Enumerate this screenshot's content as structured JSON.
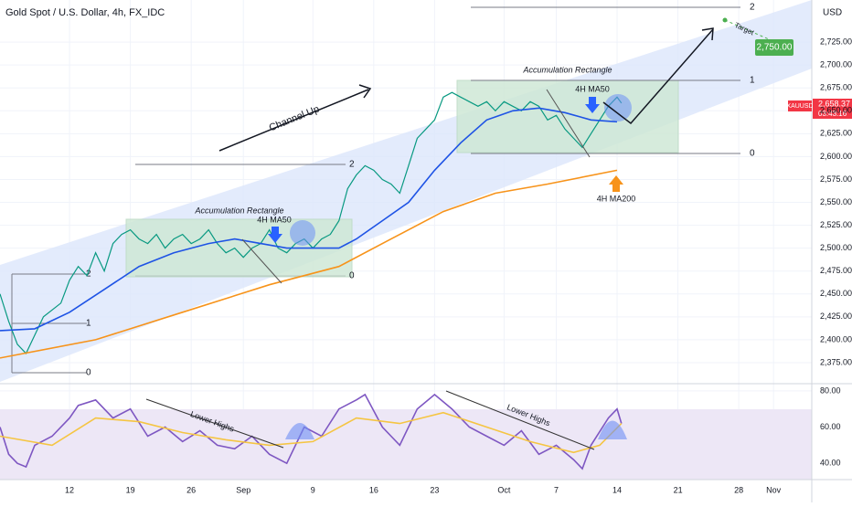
{
  "chart_data": [
    {
      "type": "line",
      "title": "Gold Spot / U.S. Dollar, 4h, FX_IDC",
      "currency": "USD",
      "xlim": [
        -1,
        92.4
      ],
      "xticks": [
        {
          "value": 7,
          "label": "12"
        },
        {
          "value": 14,
          "label": "19"
        },
        {
          "value": 21,
          "label": "26"
        },
        {
          "value": 27,
          "label": "Sep"
        },
        {
          "value": 35,
          "label": "9"
        },
        {
          "value": 42,
          "label": "16"
        },
        {
          "value": 49,
          "label": "23"
        },
        {
          "value": 57,
          "label": "Oct"
        },
        {
          "value": 63,
          "label": "7"
        },
        {
          "value": 70,
          "label": "14"
        },
        {
          "value": 77,
          "label": "21"
        },
        {
          "value": 84,
          "label": "28"
        },
        {
          "value": 88,
          "label": "Nov"
        }
      ],
      "ylim": [
        2352,
        2771
      ],
      "yticks": [
        {
          "value": 2375,
          "label": "2,375.00"
        },
        {
          "value": 2400,
          "label": "2,400.00"
        },
        {
          "value": 2425,
          "label": "2,425.00"
        },
        {
          "value": 2450,
          "label": "2,450.00"
        },
        {
          "value": 2475,
          "label": "2,475.00"
        },
        {
          "value": 2500,
          "label": "2,500.00"
        },
        {
          "value": 2525,
          "label": "2,525.00"
        },
        {
          "value": 2550,
          "label": "2,550.00"
        },
        {
          "value": 2575,
          "label": "2,575.00"
        },
        {
          "value": 2600,
          "label": "2,600.00"
        },
        {
          "value": 2625,
          "label": "2,625.00"
        },
        {
          "value": 2650,
          "label": "2,650.00"
        },
        {
          "value": 2675,
          "label": "2,675.00"
        },
        {
          "value": 2700,
          "label": "2,700.00"
        },
        {
          "value": 2725,
          "label": "2,725.00"
        }
      ],
      "grid": true,
      "series": [
        {
          "name": "XAUUSD",
          "color": "#089981",
          "x": [
            -1,
            0,
            1,
            2,
            3,
            4,
            6,
            7,
            8,
            9,
            10,
            11,
            12,
            13,
            14,
            15,
            16,
            17,
            18,
            19,
            20,
            21,
            22,
            23,
            24,
            25,
            26,
            27,
            28,
            29,
            30,
            31,
            32,
            33,
            34,
            35,
            36,
            37,
            38,
            39,
            40,
            41,
            42,
            43,
            44,
            45,
            46,
            47,
            48,
            49,
            50,
            51,
            52,
            53,
            54,
            55,
            56,
            57,
            58,
            59,
            60,
            61,
            62,
            63,
            64,
            65,
            66,
            67,
            68,
            69,
            70,
            70.5
          ],
          "values": [
            2450,
            2420,
            2395,
            2385,
            2405,
            2425,
            2440,
            2465,
            2480,
            2470,
            2495,
            2475,
            2505,
            2515,
            2520,
            2510,
            2505,
            2515,
            2500,
            2510,
            2515,
            2505,
            2510,
            2520,
            2505,
            2495,
            2500,
            2490,
            2500,
            2505,
            2520,
            2500,
            2495,
            2505,
            2510,
            2500,
            2510,
            2515,
            2530,
            2565,
            2580,
            2590,
            2585,
            2575,
            2570,
            2560,
            2590,
            2620,
            2630,
            2640,
            2665,
            2670,
            2665,
            2660,
            2655,
            2660,
            2650,
            2660,
            2655,
            2650,
            2660,
            2655,
            2640,
            2645,
            2630,
            2620,
            2610,
            2625,
            2640,
            2655,
            2665,
            2658.37
          ]
        },
        {
          "name": "4H MA50",
          "color": "#1e53e5",
          "x": [
            -1,
            3,
            7,
            11,
            15,
            19,
            23,
            26,
            29,
            32,
            35,
            38,
            40,
            43,
            46,
            49,
            52,
            55,
            58,
            61,
            64,
            67,
            70
          ],
          "values": [
            2410,
            2412,
            2430,
            2455,
            2480,
            2495,
            2505,
            2510,
            2505,
            2500,
            2500,
            2500,
            2510,
            2530,
            2550,
            2585,
            2615,
            2640,
            2650,
            2653,
            2648,
            2640,
            2638
          ]
        },
        {
          "name": "4H MA200",
          "color": "#f7931a",
          "x": [
            -1,
            10,
            20,
            30,
            38,
            44,
            50,
            56,
            62,
            70
          ],
          "values": [
            2380,
            2400,
            2430,
            2460,
            2480,
            2510,
            2540,
            2560,
            2570,
            2585
          ]
        }
      ],
      "last_price_label": "2,658.37",
      "countdown": "03:43:16",
      "target_label": "2,750.00",
      "annotations": [
        "Target",
        "Channel Up",
        "Accumulation Rectangle",
        "Accumulation Rectangle"
      ],
      "fib_labels": [
        "2",
        "1",
        "0",
        "2",
        "0",
        "2",
        "1",
        "0"
      ]
    },
    {
      "type": "line",
      "xlim": [
        -1,
        92.4
      ],
      "ylim": [
        31,
        84
      ],
      "yticks": [
        {
          "value": 80,
          "label": "80.00"
        },
        {
          "value": 60,
          "label": "60.00"
        },
        {
          "value": 40,
          "label": "40.00"
        }
      ],
      "series": [
        {
          "color": "#7e57c2",
          "x": [
            -1,
            0,
            1,
            2,
            3,
            5,
            7,
            8,
            10,
            12,
            14,
            16,
            18,
            20,
            22,
            24,
            26,
            28,
            30,
            32,
            34,
            36,
            38,
            40,
            41,
            43,
            45,
            47,
            49,
            51,
            53,
            55,
            57,
            59,
            61,
            63,
            65,
            66,
            67,
            69,
            70,
            70.5
          ],
          "values": [
            60,
            45,
            40,
            38,
            50,
            55,
            65,
            72,
            75,
            65,
            70,
            55,
            60,
            52,
            58,
            50,
            48,
            55,
            45,
            40,
            60,
            55,
            70,
            75,
            78,
            60,
            50,
            70,
            78,
            70,
            60,
            55,
            50,
            58,
            45,
            50,
            42,
            37,
            50,
            65,
            70,
            62
          ]
        },
        {
          "color": "#f5c542",
          "x": [
            -1,
            5,
            10,
            15,
            20,
            25,
            30,
            35,
            40,
            45,
            50,
            55,
            60,
            65,
            68,
            70.5
          ],
          "values": [
            55,
            50,
            65,
            63,
            57,
            53,
            50,
            52,
            65,
            62,
            68,
            60,
            52,
            46,
            50,
            62
          ]
        }
      ],
      "annotations": [
        "Lower Highs",
        "Lower Highs"
      ]
    }
  ]
}
